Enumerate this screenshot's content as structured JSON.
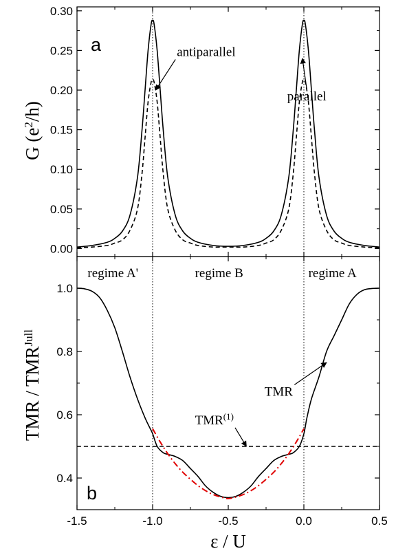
{
  "chart_data": [
    {
      "panel": "a",
      "type": "line",
      "panel_label": "a",
      "ylabel": "G (e^2/h)",
      "ylabel_parts": {
        "main": "G (e",
        "sup": "2",
        "tail": "/h)"
      },
      "ylim": [
        -0.01,
        0.305
      ],
      "yticks": [
        0.0,
        0.05,
        0.1,
        0.15,
        0.2,
        0.25,
        0.3
      ],
      "ytick_labels": [
        "0.00",
        "0.05",
        "0.10",
        "0.15",
        "0.20",
        "0.25",
        "0.30"
      ],
      "xlim": [
        -1.5,
        0.5
      ],
      "series": [
        {
          "name": "parallel",
          "style": "solid",
          "x": [
            -1.5,
            -1.4,
            -1.3,
            -1.25,
            -1.2,
            -1.15,
            -1.1,
            -1.07,
            -1.05,
            -1.03,
            -1.01,
            -1.0,
            -0.99,
            -0.97,
            -0.95,
            -0.93,
            -0.9,
            -0.85,
            -0.8,
            -0.75,
            -0.7,
            -0.6,
            -0.5,
            -0.4,
            -0.3,
            -0.25,
            -0.2,
            -0.15,
            -0.1,
            -0.07,
            -0.05,
            -0.03,
            -0.01,
            0.0,
            0.01,
            0.03,
            0.05,
            0.07,
            0.1,
            0.15,
            0.2,
            0.25,
            0.3,
            0.4,
            0.5
          ],
          "y": [
            0.002,
            0.004,
            0.008,
            0.013,
            0.022,
            0.042,
            0.09,
            0.15,
            0.2,
            0.25,
            0.283,
            0.288,
            0.283,
            0.25,
            0.2,
            0.15,
            0.09,
            0.042,
            0.022,
            0.013,
            0.008,
            0.004,
            0.003,
            0.004,
            0.008,
            0.013,
            0.022,
            0.042,
            0.09,
            0.15,
            0.2,
            0.25,
            0.283,
            0.288,
            0.283,
            0.25,
            0.2,
            0.15,
            0.09,
            0.042,
            0.022,
            0.013,
            0.008,
            0.004,
            0.002
          ]
        },
        {
          "name": "antiparallel",
          "style": "dashed",
          "x": [
            -1.5,
            -1.4,
            -1.3,
            -1.25,
            -1.2,
            -1.15,
            -1.1,
            -1.07,
            -1.05,
            -1.03,
            -1.01,
            -1.0,
            -0.99,
            -0.97,
            -0.95,
            -0.93,
            -0.9,
            -0.85,
            -0.8,
            -0.75,
            -0.7,
            -0.6,
            -0.5,
            -0.4,
            -0.3,
            -0.25,
            -0.2,
            -0.15,
            -0.1,
            -0.07,
            -0.05,
            -0.03,
            -0.01,
            0.0,
            0.01,
            0.03,
            0.05,
            0.07,
            0.1,
            0.15,
            0.2,
            0.25,
            0.3,
            0.4,
            0.5
          ],
          "y": [
            0.001,
            0.002,
            0.004,
            0.007,
            0.011,
            0.023,
            0.05,
            0.095,
            0.14,
            0.185,
            0.21,
            0.213,
            0.21,
            0.185,
            0.14,
            0.095,
            0.05,
            0.023,
            0.011,
            0.007,
            0.004,
            0.002,
            0.002,
            0.002,
            0.004,
            0.007,
            0.011,
            0.023,
            0.05,
            0.095,
            0.14,
            0.185,
            0.21,
            0.213,
            0.21,
            0.185,
            0.14,
            0.095,
            0.05,
            0.023,
            0.011,
            0.007,
            0.004,
            0.002,
            0.001
          ]
        }
      ],
      "vlines": [
        -1.0,
        0.0
      ],
      "annotations": [
        {
          "text": "antiparallel",
          "x": -0.84,
          "y": 0.243,
          "arrow_to": [
            -0.98,
            0.2
          ]
        },
        {
          "text": "parallel",
          "x": -0.11,
          "y": 0.187,
          "arrow_to": [
            -0.01,
            0.24
          ]
        }
      ]
    },
    {
      "panel": "b",
      "type": "line",
      "panel_label": "b",
      "ylabel": "TMR / TMR^Jull",
      "ylabel_parts": {
        "main": "TMR / TMR",
        "sup": "Jull"
      },
      "xlabel": "ε / U",
      "xlim": [
        -1.5,
        0.5
      ],
      "xticks": [
        -1.5,
        -1.0,
        -0.5,
        0.0,
        0.5
      ],
      "xtick_labels": [
        "-1.5",
        "-1.0",
        "-0.5",
        "0.0",
        "0.5"
      ],
      "ylim": [
        0.3,
        1.1
      ],
      "yticks": [
        0.4,
        0.6,
        0.8,
        1.0
      ],
      "ytick_labels": [
        "0.4",
        "0.6",
        "0.8",
        "1.0"
      ],
      "series": [
        {
          "name": "TMR",
          "style": "solid",
          "x": [
            -1.5,
            -1.45,
            -1.4,
            -1.35,
            -1.3,
            -1.25,
            -1.2,
            -1.15,
            -1.1,
            -1.05,
            -1.02,
            -1.0,
            -0.97,
            -0.93,
            -0.9,
            -0.85,
            -0.8,
            -0.75,
            -0.7,
            -0.65,
            -0.6,
            -0.55,
            -0.5,
            -0.45,
            -0.4,
            -0.35,
            -0.3,
            -0.25,
            -0.2,
            -0.15,
            -0.1,
            -0.07,
            -0.03,
            0.0,
            0.02,
            0.05,
            0.1,
            0.15,
            0.2,
            0.25,
            0.3,
            0.35,
            0.4,
            0.45,
            0.5
          ],
          "y": [
            1.0,
            0.998,
            0.99,
            0.97,
            0.93,
            0.875,
            0.8,
            0.72,
            0.65,
            0.59,
            0.56,
            0.54,
            0.5,
            0.48,
            0.475,
            0.468,
            0.455,
            0.43,
            0.405,
            0.375,
            0.355,
            0.342,
            0.338,
            0.342,
            0.355,
            0.375,
            0.405,
            0.43,
            0.455,
            0.468,
            0.475,
            0.48,
            0.5,
            0.54,
            0.59,
            0.65,
            0.72,
            0.8,
            0.85,
            0.9,
            0.95,
            0.98,
            0.995,
            0.999,
            1.0
          ]
        },
        {
          "name": "TMR(1)",
          "style": "dashed",
          "x": [
            -1.5,
            0.5
          ],
          "y": [
            0.5,
            0.5
          ]
        },
        {
          "name": "red-dash-dot",
          "style": "dash-dot",
          "color": "#e00000",
          "x": [
            -1.0,
            -0.95,
            -0.9,
            -0.85,
            -0.8,
            -0.75,
            -0.7,
            -0.65,
            -0.6,
            -0.55,
            -0.5,
            -0.45,
            -0.4,
            -0.35,
            -0.3,
            -0.25,
            -0.2,
            -0.15,
            -0.1,
            -0.05,
            0.0
          ],
          "y": [
            0.556,
            0.514,
            0.477,
            0.445,
            0.418,
            0.396,
            0.376,
            0.36,
            0.348,
            0.34,
            0.335,
            0.34,
            0.348,
            0.36,
            0.376,
            0.396,
            0.418,
            0.445,
            0.477,
            0.514,
            0.556
          ]
        }
      ],
      "vlines": [
        -1.0,
        0.0
      ],
      "regimes": [
        {
          "text": "regime A'",
          "x": -1.43,
          "y": 1.035
        },
        {
          "text": "regime B",
          "x": -0.72,
          "y": 1.035
        },
        {
          "text": "regime A",
          "x": 0.03,
          "y": 1.035
        }
      ],
      "annotations": [
        {
          "text": "TMR",
          "text_sup": "",
          "x": -0.26,
          "y": 0.66,
          "arrow_to": [
            0.15,
            0.765
          ]
        },
        {
          "text": "TMR",
          "text_sup": "(1)",
          "x": -0.72,
          "y": 0.57,
          "arrow_to": [
            -0.38,
            0.5
          ]
        }
      ]
    }
  ]
}
